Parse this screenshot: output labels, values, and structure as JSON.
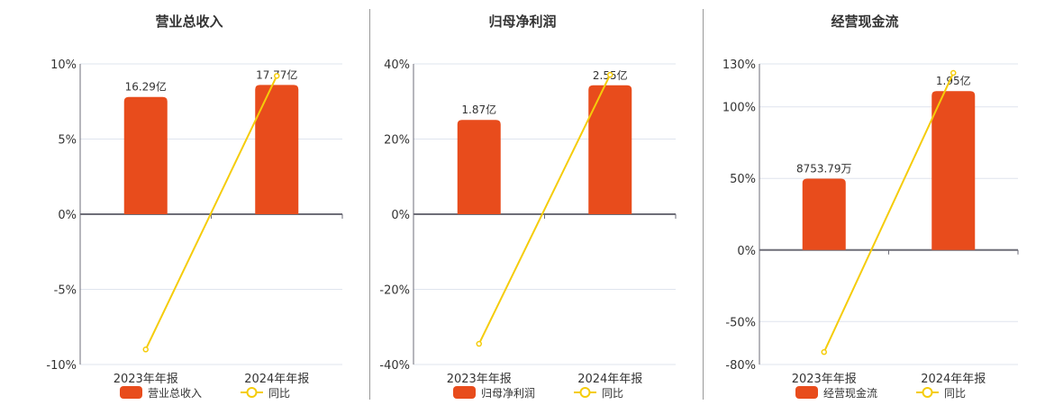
{
  "colors": {
    "bar": "#e84c1c",
    "line": "#f5cc0a",
    "grid": "#dfe4ee",
    "axis": "#6e6e78",
    "text": "#333333",
    "divider": "#999999"
  },
  "chart_data": [
    {
      "type": "bar+line",
      "title": "营业总收入",
      "categories": [
        "2023年年报",
        "2024年年报"
      ],
      "series": [
        {
          "name": "营业总收入",
          "type": "bar",
          "labels": [
            "16.29亿",
            "17.77亿"
          ],
          "values_pct_axis": [
            7.8,
            8.6
          ]
        },
        {
          "name": "同比",
          "type": "line",
          "values": [
            -9.0,
            9.2
          ]
        }
      ],
      "yticks": [
        "10%",
        "5%",
        "0%",
        "-5%",
        "-10%"
      ],
      "ylim": [
        -10,
        10
      ],
      "legend": [
        "营业总收入",
        "同比"
      ]
    },
    {
      "type": "bar+line",
      "title": "归母净利润",
      "categories": [
        "2023年年报",
        "2024年年报"
      ],
      "series": [
        {
          "name": "归母净利润",
          "type": "bar",
          "labels": [
            "1.87亿",
            "2.55亿"
          ],
          "values_pct_axis": [
            25.1,
            34.3
          ]
        },
        {
          "name": "同比",
          "type": "line",
          "values": [
            -34.5,
            37.1
          ]
        }
      ],
      "yticks": [
        "40%",
        "20%",
        "0%",
        "-20%",
        "-40%"
      ],
      "ylim": [
        -40,
        40
      ],
      "legend": [
        "归母净利润",
        "同比"
      ]
    },
    {
      "type": "bar+line",
      "title": "经营现金流",
      "categories": [
        "2023年年报",
        "2024年年报"
      ],
      "series": [
        {
          "name": "经营现金流",
          "type": "bar",
          "labels": [
            "8753.79万",
            "1.95亿"
          ],
          "values_pct_axis": [
            49.8,
            111.0
          ]
        },
        {
          "name": "同比",
          "type": "line",
          "values": [
            -71.3,
            123.7
          ]
        }
      ],
      "yticks": [
        "130%",
        "100%",
        "50%",
        "0%",
        "-50%",
        "-80%"
      ],
      "ylim": [
        -80,
        130
      ],
      "legend": [
        "经营现金流",
        "同比"
      ]
    }
  ]
}
